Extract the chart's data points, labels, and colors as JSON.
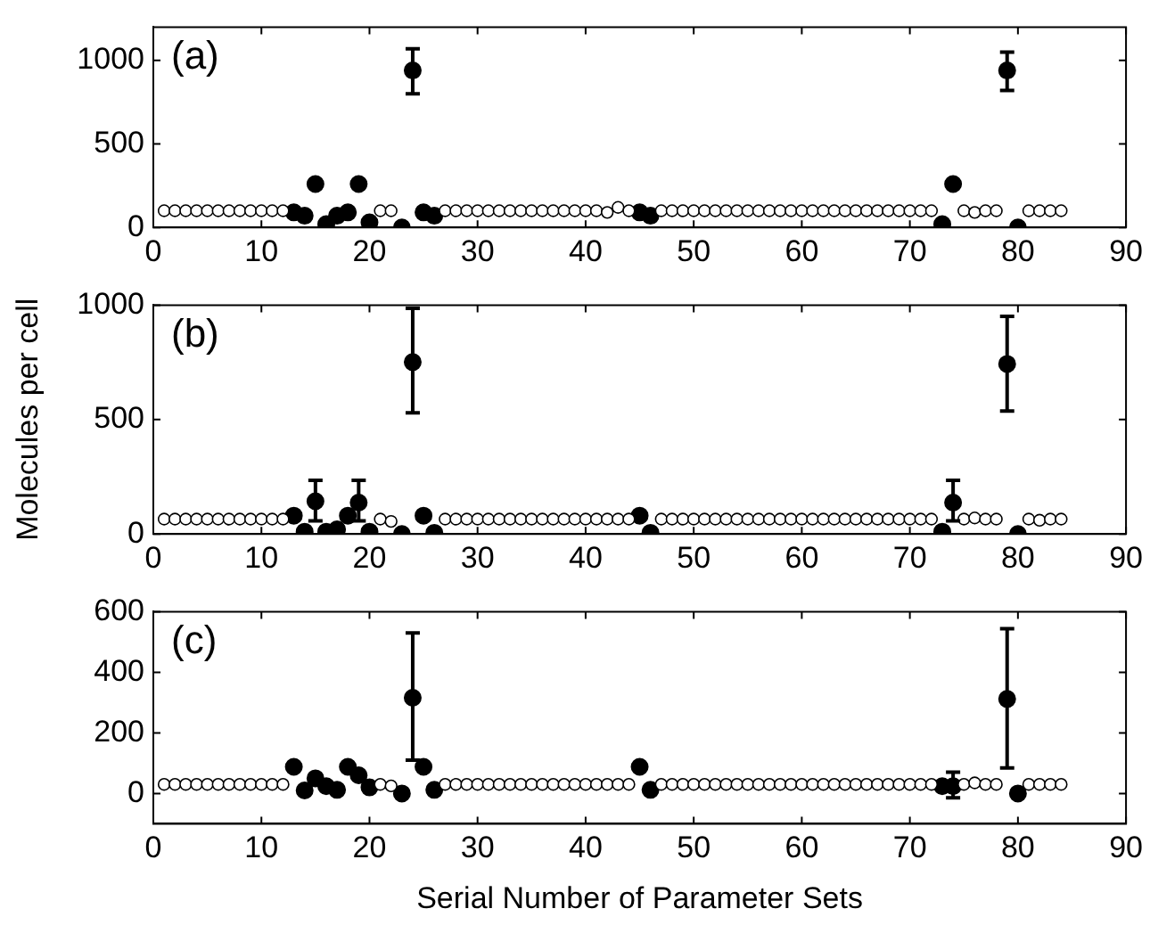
{
  "chart_data": [
    {
      "type": "scatter",
      "annotations": [
        "(a)"
      ],
      "xlim": [
        0,
        90
      ],
      "xticks": [
        0,
        10,
        20,
        30,
        40,
        50,
        60,
        70,
        80,
        90
      ],
      "ylim": [
        0,
        1200
      ],
      "yticks": [
        0,
        500,
        1000
      ],
      "grid": false,
      "legend": false,
      "marker": "circle",
      "series": [
        {
          "color": "#000000",
          "x": [
            1,
            2,
            3,
            4,
            5,
            6,
            7,
            8,
            9,
            10,
            11,
            12,
            21,
            22,
            27,
            28,
            29,
            30,
            31,
            32,
            33,
            34,
            35,
            36,
            37,
            38,
            39,
            40,
            41,
            42,
            43,
            44,
            47,
            48,
            49,
            50,
            51,
            52,
            53,
            54,
            55,
            56,
            57,
            58,
            59,
            60,
            61,
            62,
            63,
            64,
            65,
            66,
            67,
            68,
            69,
            70,
            71,
            72,
            75,
            76,
            77,
            78,
            81,
            82,
            83,
            84
          ],
          "values": [
            100,
            100,
            100,
            100,
            100,
            100,
            100,
            100,
            100,
            100,
            100,
            100,
            100,
            100,
            100,
            100,
            100,
            100,
            100,
            100,
            100,
            100,
            100,
            100,
            100,
            100,
            100,
            100,
            100,
            90,
            120,
            100,
            100,
            100,
            100,
            100,
            100,
            100,
            100,
            100,
            100,
            100,
            100,
            100,
            100,
            100,
            100,
            100,
            100,
            100,
            100,
            100,
            100,
            100,
            100,
            100,
            100,
            100,
            100,
            90,
            100,
            100,
            100,
            100,
            100,
            100
          ]
        },
        {
          "color": "#000000",
          "x": [
            13,
            14,
            15,
            16,
            17,
            18,
            19,
            20,
            23,
            24,
            25,
            26,
            45,
            46,
            73,
            74,
            79,
            80
          ],
          "values": [
            90,
            70,
            260,
            20,
            70,
            90,
            260,
            30,
            0,
            940,
            90,
            70,
            90,
            70,
            20,
            260,
            940,
            0
          ],
          "errors": [
            null,
            null,
            [
              240,
              280
            ],
            null,
            null,
            null,
            [
              240,
              280
            ],
            null,
            null,
            [
              800,
              1070
            ],
            null,
            null,
            null,
            null,
            null,
            null,
            [
              820,
              1050
            ],
            null
          ]
        }
      ]
    },
    {
      "type": "scatter",
      "annotations": [
        "(b)"
      ],
      "ylabel": "Molecules per cell",
      "xlim": [
        0,
        90
      ],
      "xticks": [
        0,
        10,
        20,
        30,
        40,
        50,
        60,
        70,
        80,
        90
      ],
      "ylim": [
        0,
        1000
      ],
      "yticks": [
        0,
        500,
        1000
      ],
      "grid": false,
      "legend": false,
      "marker": "circle",
      "series": [
        {
          "color": "#000000",
          "x": [
            1,
            2,
            3,
            4,
            5,
            6,
            7,
            8,
            9,
            10,
            11,
            12,
            21,
            22,
            27,
            28,
            29,
            30,
            31,
            32,
            33,
            34,
            35,
            36,
            37,
            38,
            39,
            40,
            41,
            42,
            43,
            44,
            47,
            48,
            49,
            50,
            51,
            52,
            53,
            54,
            55,
            56,
            57,
            58,
            59,
            60,
            61,
            62,
            63,
            64,
            65,
            66,
            67,
            68,
            69,
            70,
            71,
            72,
            75,
            76,
            77,
            78,
            81,
            82,
            83,
            84
          ],
          "values": [
            65,
            65,
            65,
            65,
            65,
            65,
            65,
            65,
            65,
            65,
            65,
            65,
            65,
            55,
            65,
            65,
            65,
            65,
            65,
            65,
            65,
            65,
            65,
            65,
            65,
            65,
            65,
            65,
            65,
            65,
            65,
            65,
            65,
            65,
            65,
            65,
            65,
            65,
            65,
            65,
            65,
            65,
            65,
            65,
            65,
            65,
            65,
            65,
            65,
            65,
            65,
            65,
            65,
            65,
            65,
            65,
            65,
            65,
            65,
            70,
            65,
            65,
            65,
            60,
            65,
            65
          ]
        },
        {
          "color": "#000000",
          "x": [
            13,
            14,
            15,
            16,
            17,
            18,
            19,
            20,
            23,
            24,
            25,
            26,
            45,
            46,
            73,
            74,
            79,
            80
          ],
          "values": [
            80,
            10,
            143,
            10,
            20,
            80,
            137,
            10,
            0,
            751,
            80,
            5,
            80,
            5,
            10,
            137,
            743,
            0
          ],
          "errors": [
            null,
            null,
            [
              57,
              234
            ],
            null,
            null,
            null,
            [
              57,
              234
            ],
            null,
            null,
            [
              529,
              986
            ],
            null,
            null,
            null,
            null,
            null,
            [
              57,
              234
            ],
            [
              537,
              951
            ],
            null
          ]
        }
      ]
    },
    {
      "type": "scatter",
      "annotations": [
        "(c)"
      ],
      "xlabel": "Serial Number of Parameter Sets",
      "xlim": [
        0,
        90
      ],
      "xticks": [
        0,
        10,
        20,
        30,
        40,
        50,
        60,
        70,
        80,
        90
      ],
      "ylim": [
        -100,
        600
      ],
      "yticks": [
        0,
        200,
        400,
        600
      ],
      "grid": false,
      "legend": false,
      "marker": "circle",
      "series": [
        {
          "color": "#000000",
          "x": [
            1,
            2,
            3,
            4,
            5,
            6,
            7,
            8,
            9,
            10,
            11,
            12,
            21,
            22,
            27,
            28,
            29,
            30,
            31,
            32,
            33,
            34,
            35,
            36,
            37,
            38,
            39,
            40,
            41,
            42,
            43,
            44,
            47,
            48,
            49,
            50,
            51,
            52,
            53,
            54,
            55,
            56,
            57,
            58,
            59,
            60,
            61,
            62,
            63,
            64,
            65,
            66,
            67,
            68,
            69,
            70,
            71,
            72,
            75,
            76,
            77,
            78,
            81,
            82,
            83,
            84
          ],
          "values": [
            30,
            30,
            30,
            30,
            30,
            30,
            30,
            30,
            30,
            30,
            30,
            30,
            30,
            25,
            30,
            30,
            30,
            30,
            30,
            30,
            30,
            30,
            30,
            30,
            30,
            30,
            30,
            30,
            30,
            30,
            30,
            30,
            30,
            30,
            30,
            30,
            30,
            30,
            30,
            30,
            30,
            30,
            30,
            30,
            30,
            30,
            30,
            30,
            30,
            30,
            30,
            30,
            30,
            30,
            30,
            30,
            30,
            30,
            30,
            35,
            30,
            30,
            30,
            30,
            30,
            30
          ]
        },
        {
          "color": "#000000",
          "x": [
            13,
            14,
            15,
            16,
            17,
            18,
            19,
            20,
            23,
            24,
            25,
            26,
            45,
            46,
            73,
            74,
            79,
            80
          ],
          "values": [
            88,
            10,
            50,
            24,
            12,
            88,
            60,
            20,
            0,
            316,
            88,
            12,
            88,
            12,
            24,
            24,
            312,
            0
          ],
          "errors": [
            null,
            null,
            null,
            null,
            null,
            null,
            null,
            null,
            null,
            [
              110,
              530
            ],
            null,
            null,
            null,
            null,
            null,
            [
              -14,
              70
            ],
            [
              84,
              544
            ],
            null
          ]
        }
      ]
    }
  ]
}
